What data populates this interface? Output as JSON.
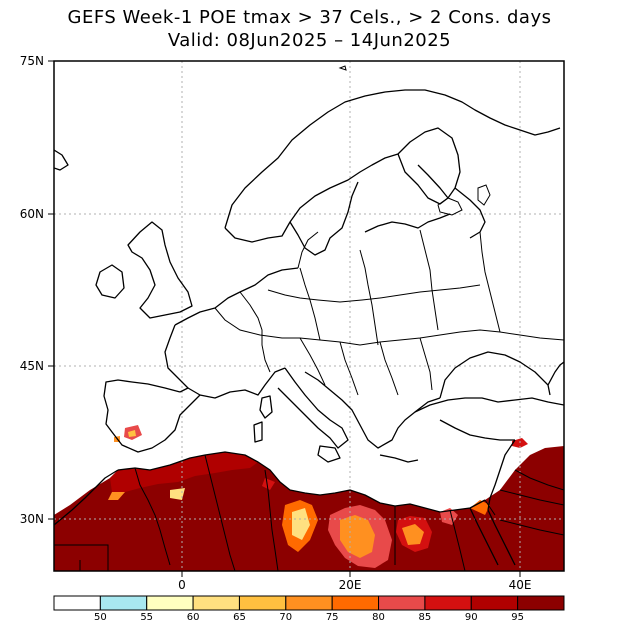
{
  "title": {
    "line1": "GEFS Week-1 POE tmax > 37 Cels., > 2 Cons. days",
    "line2": "Valid: 08Jun2025 – 14Jun2025"
  },
  "lat_labels": [
    "75N",
    "60N",
    "45N",
    "30N"
  ],
  "lon_labels": [
    "0",
    "20E",
    "40E"
  ],
  "colorbar": {
    "colors": [
      "#ffffff",
      "#a8e8f0",
      "#ffffc0",
      "#ffe080",
      "#ffc040",
      "#ff9020",
      "#ff6a00",
      "#e84a4a",
      "#d41010",
      "#b00000",
      "#8c0000"
    ],
    "labels": [
      "50",
      "55",
      "60",
      "65",
      "70",
      "75",
      "80",
      "85",
      "90",
      "95"
    ]
  }
}
